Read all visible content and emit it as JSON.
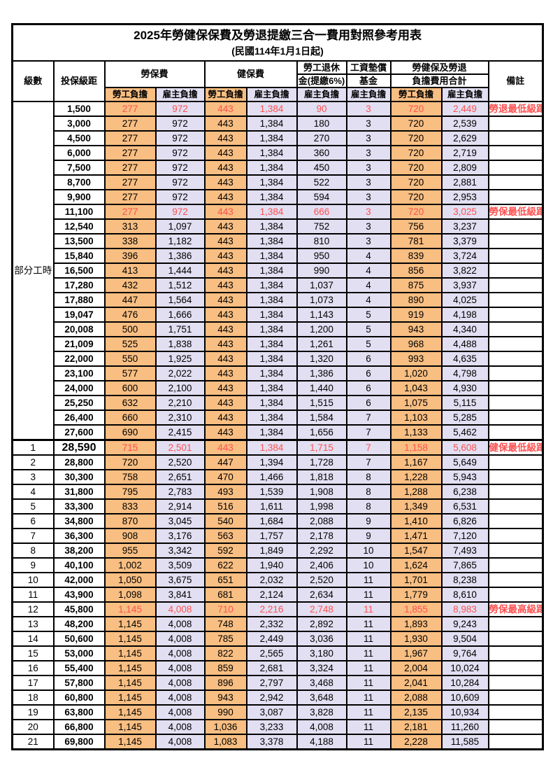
{
  "title": "2025年勞健保保費及勞退提繳三合一費用對照參考用表",
  "subtitle": "(民國114年1月1日起)",
  "colors": {
    "employee_fill": "#F8BE82",
    "employer_fill": "#E2DFF2",
    "highlight_text": "#FF5050",
    "grid": "#000000",
    "background": "#FFFFFF"
  },
  "header": {
    "level": "級數",
    "bracket": "投保級距",
    "labor_insurance": "勞保費",
    "health_insurance": "健保費",
    "pension_line1": "勞工退休",
    "pension_line2": "金(提繳6%)",
    "wage_fund_line1": "工資墊償",
    "wage_fund_line2": "基金",
    "total_line1": "勞健保及勞退",
    "total_line2": "負擔費用合計",
    "remark": "備註",
    "employee_share": "勞工負擔",
    "employer_share": "雇主負擔"
  },
  "rows": [
    {
      "level": "部分工時",
      "rowspan": 23,
      "parttime": true,
      "bracket": "1,500",
      "values": [
        "277",
        "972",
        "443",
        "1,384",
        "90",
        "3",
        "720",
        "2,449"
      ],
      "remark": "勞退最低級距",
      "red": true,
      "em": false
    },
    {
      "level": null,
      "bracket": "3,000",
      "values": [
        "277",
        "972",
        "443",
        "1,384",
        "180",
        "3",
        "720",
        "2,539"
      ],
      "remark": "",
      "red": false,
      "em": false
    },
    {
      "level": null,
      "bracket": "4,500",
      "values": [
        "277",
        "972",
        "443",
        "1,384",
        "270",
        "3",
        "720",
        "2,629"
      ],
      "remark": "",
      "red": false,
      "em": false
    },
    {
      "level": null,
      "bracket": "6,000",
      "values": [
        "277",
        "972",
        "443",
        "1,384",
        "360",
        "3",
        "720",
        "2,719"
      ],
      "remark": "",
      "red": false,
      "em": false
    },
    {
      "level": null,
      "bracket": "7,500",
      "values": [
        "277",
        "972",
        "443",
        "1,384",
        "450",
        "3",
        "720",
        "2,809"
      ],
      "remark": "",
      "red": false,
      "em": false
    },
    {
      "level": null,
      "bracket": "8,700",
      "values": [
        "277",
        "972",
        "443",
        "1,384",
        "522",
        "3",
        "720",
        "2,881"
      ],
      "remark": "",
      "red": false,
      "em": false
    },
    {
      "level": null,
      "bracket": "9,900",
      "values": [
        "277",
        "972",
        "443",
        "1,384",
        "594",
        "3",
        "720",
        "2,953"
      ],
      "remark": "",
      "red": false,
      "em": false
    },
    {
      "level": null,
      "bracket": "11,100",
      "values": [
        "277",
        "972",
        "443",
        "1,384",
        "666",
        "3",
        "720",
        "3,025"
      ],
      "remark": "勞保最低級距",
      "red": true,
      "em": false
    },
    {
      "level": null,
      "bracket": "12,540",
      "values": [
        "313",
        "1,097",
        "443",
        "1,384",
        "752",
        "3",
        "756",
        "3,237"
      ],
      "remark": "",
      "red": false,
      "em": false
    },
    {
      "level": null,
      "bracket": "13,500",
      "values": [
        "338",
        "1,182",
        "443",
        "1,384",
        "810",
        "3",
        "781",
        "3,379"
      ],
      "remark": "",
      "red": false,
      "em": false
    },
    {
      "level": null,
      "bracket": "15,840",
      "values": [
        "396",
        "1,386",
        "443",
        "1,384",
        "950",
        "4",
        "839",
        "3,724"
      ],
      "remark": "",
      "red": false,
      "em": false
    },
    {
      "level": null,
      "bracket": "16,500",
      "values": [
        "413",
        "1,444",
        "443",
        "1,384",
        "990",
        "4",
        "856",
        "3,822"
      ],
      "remark": "",
      "red": false,
      "em": false
    },
    {
      "level": null,
      "bracket": "17,280",
      "values": [
        "432",
        "1,512",
        "443",
        "1,384",
        "1,037",
        "4",
        "875",
        "3,937"
      ],
      "remark": "",
      "red": false,
      "em": false
    },
    {
      "level": null,
      "bracket": "17,880",
      "values": [
        "447",
        "1,564",
        "443",
        "1,384",
        "1,073",
        "4",
        "890",
        "4,025"
      ],
      "remark": "",
      "red": false,
      "em": false
    },
    {
      "level": null,
      "bracket": "19,047",
      "values": [
        "476",
        "1,666",
        "443",
        "1,384",
        "1,143",
        "5",
        "919",
        "4,198"
      ],
      "remark": "",
      "red": false,
      "em": false
    },
    {
      "level": null,
      "bracket": "20,008",
      "values": [
        "500",
        "1,751",
        "443",
        "1,384",
        "1,200",
        "5",
        "943",
        "4,340"
      ],
      "remark": "",
      "red": false,
      "em": false
    },
    {
      "level": null,
      "bracket": "21,009",
      "values": [
        "525",
        "1,838",
        "443",
        "1,384",
        "1,261",
        "5",
        "968",
        "4,488"
      ],
      "remark": "",
      "red": false,
      "em": false
    },
    {
      "level": null,
      "bracket": "22,000",
      "values": [
        "550",
        "1,925",
        "443",
        "1,384",
        "1,320",
        "6",
        "993",
        "4,635"
      ],
      "remark": "",
      "red": false,
      "em": false
    },
    {
      "level": null,
      "bracket": "23,100",
      "values": [
        "577",
        "2,022",
        "443",
        "1,384",
        "1,386",
        "6",
        "1,020",
        "4,798"
      ],
      "remark": "",
      "red": false,
      "em": false
    },
    {
      "level": null,
      "bracket": "24,000",
      "values": [
        "600",
        "2,100",
        "443",
        "1,384",
        "1,440",
        "6",
        "1,043",
        "4,930"
      ],
      "remark": "",
      "red": false,
      "em": false
    },
    {
      "level": null,
      "bracket": "25,250",
      "values": [
        "632",
        "2,210",
        "443",
        "1,384",
        "1,515",
        "6",
        "1,075",
        "5,115"
      ],
      "remark": "",
      "red": false,
      "em": false
    },
    {
      "level": null,
      "bracket": "26,400",
      "values": [
        "660",
        "2,310",
        "443",
        "1,384",
        "1,584",
        "7",
        "1,103",
        "5,285"
      ],
      "remark": "",
      "red": false,
      "em": false
    },
    {
      "level": null,
      "bracket": "27,600",
      "values": [
        "690",
        "2,415",
        "443",
        "1,384",
        "1,656",
        "7",
        "1,133",
        "5,462"
      ],
      "remark": "",
      "red": false,
      "em": false
    },
    {
      "level": "1",
      "bracket": "28,590",
      "values": [
        "715",
        "2,501",
        "443",
        "1,384",
        "1,715",
        "7",
        "1,158",
        "5,608"
      ],
      "remark": "健保最低級距",
      "red": true,
      "em": true
    },
    {
      "level": "2",
      "bracket": "28,800",
      "values": [
        "720",
        "2,520",
        "447",
        "1,394",
        "1,728",
        "7",
        "1,167",
        "5,649"
      ],
      "remark": "",
      "red": false,
      "em": false
    },
    {
      "level": "3",
      "bracket": "30,300",
      "values": [
        "758",
        "2,651",
        "470",
        "1,466",
        "1,818",
        "8",
        "1,228",
        "5,943"
      ],
      "remark": "",
      "red": false,
      "em": false
    },
    {
      "level": "4",
      "bracket": "31,800",
      "values": [
        "795",
        "2,783",
        "493",
        "1,539",
        "1,908",
        "8",
        "1,288",
        "6,238"
      ],
      "remark": "",
      "red": false,
      "em": false
    },
    {
      "level": "5",
      "bracket": "33,300",
      "values": [
        "833",
        "2,914",
        "516",
        "1,611",
        "1,998",
        "8",
        "1,349",
        "6,531"
      ],
      "remark": "",
      "red": false,
      "em": false
    },
    {
      "level": "6",
      "bracket": "34,800",
      "values": [
        "870",
        "3,045",
        "540",
        "1,684",
        "2,088",
        "9",
        "1,410",
        "6,826"
      ],
      "remark": "",
      "red": false,
      "em": false
    },
    {
      "level": "7",
      "bracket": "36,300",
      "values": [
        "908",
        "3,176",
        "563",
        "1,757",
        "2,178",
        "9",
        "1,471",
        "7,120"
      ],
      "remark": "",
      "red": false,
      "em": false
    },
    {
      "level": "8",
      "bracket": "38,200",
      "values": [
        "955",
        "3,342",
        "592",
        "1,849",
        "2,292",
        "10",
        "1,547",
        "7,493"
      ],
      "remark": "",
      "red": false,
      "em": false
    },
    {
      "level": "9",
      "bracket": "40,100",
      "values": [
        "1,002",
        "3,509",
        "622",
        "1,940",
        "2,406",
        "10",
        "1,624",
        "7,865"
      ],
      "remark": "",
      "red": false,
      "em": false
    },
    {
      "level": "10",
      "bracket": "42,000",
      "values": [
        "1,050",
        "3,675",
        "651",
        "2,032",
        "2,520",
        "11",
        "1,701",
        "8,238"
      ],
      "remark": "",
      "red": false,
      "em": false
    },
    {
      "level": "11",
      "bracket": "43,900",
      "values": [
        "1,098",
        "3,841",
        "681",
        "2,124",
        "2,634",
        "11",
        "1,779",
        "8,610"
      ],
      "remark": "",
      "red": false,
      "em": false
    },
    {
      "level": "12",
      "bracket": "45,800",
      "values": [
        "1,145",
        "4,008",
        "710",
        "2,216",
        "2,748",
        "11",
        "1,855",
        "8,983"
      ],
      "remark": "勞保最高級距",
      "red": true,
      "em": false
    },
    {
      "level": "13",
      "bracket": "48,200",
      "values": [
        "1,145",
        "4,008",
        "748",
        "2,332",
        "2,892",
        "11",
        "1,893",
        "9,243"
      ],
      "remark": "",
      "red": false,
      "em": false
    },
    {
      "level": "14",
      "bracket": "50,600",
      "values": [
        "1,145",
        "4,008",
        "785",
        "2,449",
        "3,036",
        "11",
        "1,930",
        "9,504"
      ],
      "remark": "",
      "red": false,
      "em": false
    },
    {
      "level": "15",
      "bracket": "53,000",
      "values": [
        "1,145",
        "4,008",
        "822",
        "2,565",
        "3,180",
        "11",
        "1,967",
        "9,764"
      ],
      "remark": "",
      "red": false,
      "em": false
    },
    {
      "level": "16",
      "bracket": "55,400",
      "values": [
        "1,145",
        "4,008",
        "859",
        "2,681",
        "3,324",
        "11",
        "2,004",
        "10,024"
      ],
      "remark": "",
      "red": false,
      "em": false
    },
    {
      "level": "17",
      "bracket": "57,800",
      "values": [
        "1,145",
        "4,008",
        "896",
        "2,797",
        "3,468",
        "11",
        "2,041",
        "10,284"
      ],
      "remark": "",
      "red": false,
      "em": false
    },
    {
      "level": "18",
      "bracket": "60,800",
      "values": [
        "1,145",
        "4,008",
        "943",
        "2,942",
        "3,648",
        "11",
        "2,088",
        "10,609"
      ],
      "remark": "",
      "red": false,
      "em": false
    },
    {
      "level": "19",
      "bracket": "63,800",
      "values": [
        "1,145",
        "4,008",
        "990",
        "3,087",
        "3,828",
        "11",
        "2,135",
        "10,934"
      ],
      "remark": "",
      "red": false,
      "em": false
    },
    {
      "level": "20",
      "bracket": "66,800",
      "values": [
        "1,145",
        "4,008",
        "1,036",
        "3,233",
        "4,008",
        "11",
        "2,181",
        "11,260"
      ],
      "remark": "",
      "red": false,
      "em": false
    },
    {
      "level": "21",
      "bracket": "69,800",
      "values": [
        "1,145",
        "4,008",
        "1,083",
        "3,378",
        "4,188",
        "11",
        "2,228",
        "11,585"
      ],
      "remark": "",
      "red": false,
      "em": false
    }
  ]
}
